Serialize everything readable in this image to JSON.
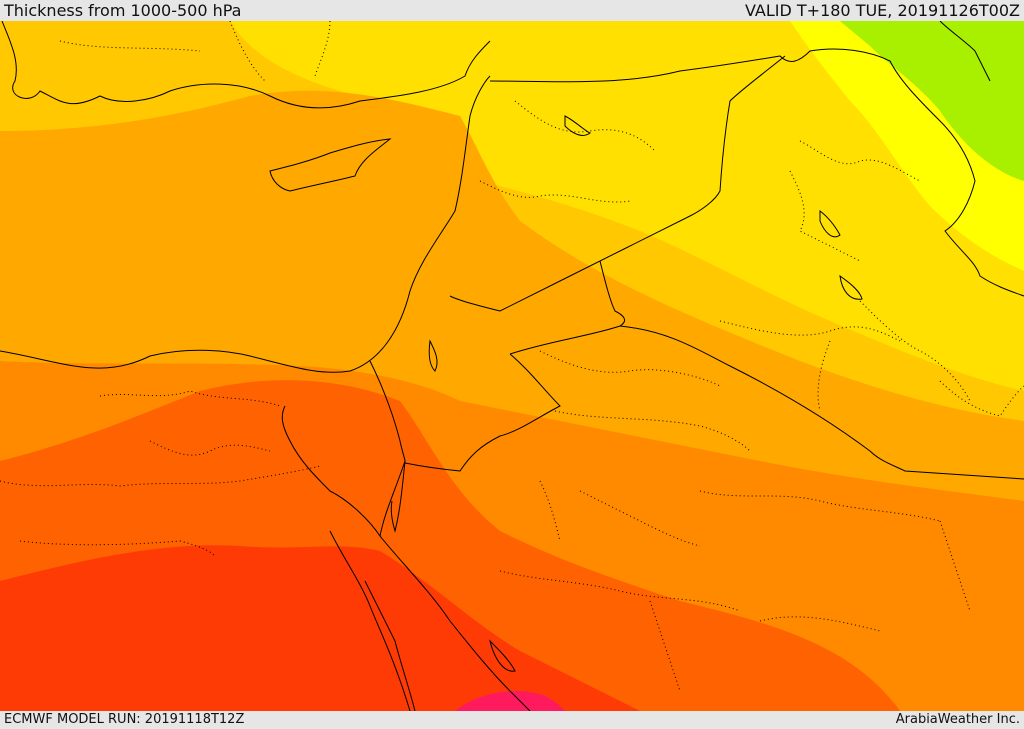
{
  "header": {
    "title": "Thickness from 1000-500 hPa",
    "valid": "VALID T+180 TUE, 20191126T00Z"
  },
  "footer": {
    "model_run": "ECMWF MODEL RUN: 20191118T12Z",
    "credit": "ArabiaWeather Inc."
  },
  "colors": {
    "band_1": "#ff1a5e",
    "band_2": "#ff3b05",
    "band_3": "#ff6200",
    "band_4": "#ff8a00",
    "band_5": "#ffa800",
    "band_6": "#ffc800",
    "band_7": "#ffe000",
    "band_8": "#ffff00",
    "band_9": "#a8f000",
    "coastline": "#000000",
    "border": "#000000"
  }
}
